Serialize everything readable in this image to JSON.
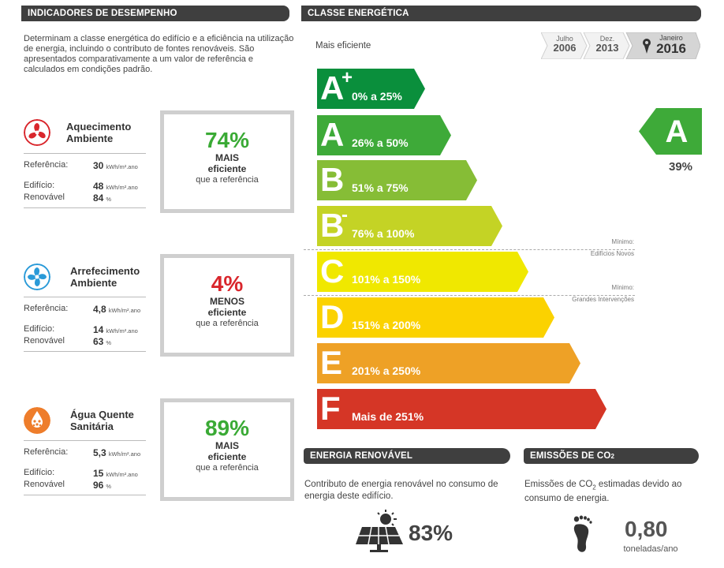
{
  "performance": {
    "header": "INDICADORES DE DESEMPENHO",
    "intro": "Determinam a classe energética do edifício e a eficiência na utilização de energia, incluindo o contributo de fontes renováveis. São apresentados comparativamente a um valor de referência e calculados em condições padrão.",
    "ref_label": "Referência:",
    "building_label": "Edifício:",
    "renewable_label": "Renovável",
    "unit": "kWh/m².ano",
    "pct_unit": "%",
    "compare_text": "que a referência",
    "eff_word": "eficiente",
    "indicators": [
      {
        "icon": "fan-heating-icon",
        "color": "#d9262c",
        "title1": "Aquecimento",
        "title2": "Ambiente",
        "reference": "30",
        "building": "48",
        "renewable": "84",
        "pct": "74%",
        "word": "MAIS",
        "pct_color": "#3aaa35"
      },
      {
        "icon": "fan-cooling-icon",
        "color": "#2a9ad8",
        "title1": "Arrefecimento",
        "title2": "Ambiente",
        "reference": "4,8",
        "building": "14",
        "renewable": "63",
        "pct": "4%",
        "word": "MENOS",
        "pct_color": "#d9262c"
      },
      {
        "icon": "water-drops-icon",
        "color": "#ee7d2b",
        "title1": "Água Quente",
        "title2": "Sanitária",
        "reference": "5,3",
        "building": "15",
        "renewable": "96",
        "pct": "89%",
        "word": "MAIS",
        "pct_color": "#3aaa35"
      }
    ]
  },
  "energy_class": {
    "header": "CLASSE ENERGÉTICA",
    "most_efficient": "Mais eficiente",
    "dates": [
      {
        "top": "Julho",
        "year": "2006",
        "active": false
      },
      {
        "top": "Dez.",
        "year": "2013",
        "active": false
      },
      {
        "top": "Janeiro",
        "year": "2016",
        "active": true
      }
    ],
    "bars": [
      {
        "letter": "A",
        "sup": "+",
        "range": "0% a 25%",
        "color": "#0a8f3c",
        "fraction": 0.3
      },
      {
        "letter": "A",
        "sup": "",
        "range": "26% a 50%",
        "color": "#3eaa39",
        "fraction": 0.38
      },
      {
        "letter": "B",
        "sup": "",
        "range": "51% a 75%",
        "color": "#86bd36",
        "fraction": 0.46
      },
      {
        "letter": "B",
        "sup": "-",
        "range": "76% a 100%",
        "color": "#c4d325",
        "fraction": 0.54
      },
      {
        "letter": "C",
        "sup": "",
        "range": "101% a 150%",
        "color": "#f0e800",
        "fraction": 0.62
      },
      {
        "letter": "D",
        "sup": "",
        "range": "151% a 200%",
        "color": "#fbd200",
        "fraction": 0.7
      },
      {
        "letter": "E",
        "sup": "",
        "range": "201% a 250%",
        "color": "#eea126",
        "fraction": 0.78
      },
      {
        "letter": "F",
        "sup": "",
        "range": "Mais de 251%",
        "color": "#d53626",
        "fraction": 0.86
      }
    ],
    "notes": [
      {
        "line1": "Mínimo:",
        "line2": "Edifícios Novos"
      },
      {
        "line1": "Mínimo:",
        "line2": "Grandes Intervenções"
      }
    ],
    "result_letter": "A",
    "result_color": "#3eaa39",
    "result_pct": "39%"
  },
  "renewable": {
    "header": "ENERGIA RENOVÁVEL",
    "text": "Contributo de energia renovável no consumo de energia deste edifício.",
    "icon": "solar-panel-icon",
    "value": "83%"
  },
  "emissions": {
    "header_pre": "EMISSÕES DE CO",
    "header_sub": "2",
    "text_pre": "Emissões de CO",
    "text_sub": "2",
    "text_post": " estimadas devido ao consumo de energia.",
    "icon": "footprint-icon",
    "value": "0,80",
    "unit": "toneladas/ano"
  }
}
